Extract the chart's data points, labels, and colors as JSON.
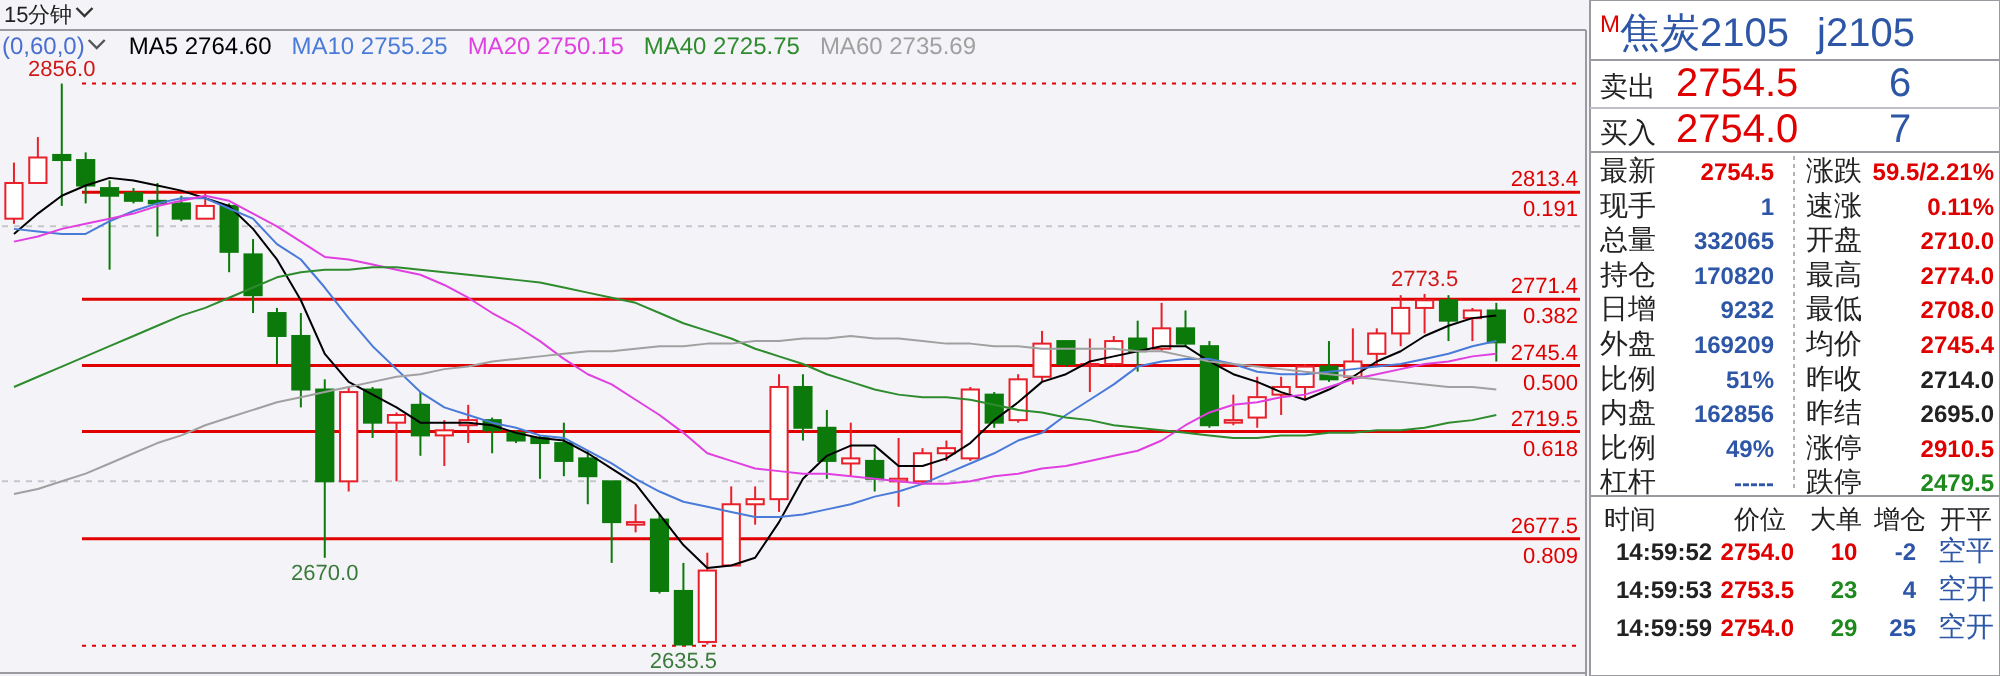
{
  "chart_data": [
    {
      "type": "candlestick",
      "title": "15分钟",
      "subtitle": "(0,60,0)",
      "categories": [
        null,
        null,
        null,
        null,
        null,
        null,
        null,
        null,
        null,
        null,
        null,
        null,
        null,
        null,
        null,
        null,
        null,
        null,
        null,
        null,
        null,
        null,
        null,
        null,
        null,
        null,
        null,
        null,
        null,
        null,
        null,
        null,
        null,
        null,
        null,
        null,
        null,
        null,
        null,
        null,
        null,
        null,
        null,
        null,
        null,
        null,
        null,
        null,
        null,
        null,
        null,
        null,
        null,
        null,
        null,
        null,
        null,
        null,
        null,
        null,
        null,
        null,
        null
      ],
      "ohlc": [
        [
          2803,
          2825,
          2801,
          2817
        ],
        [
          2817,
          2835,
          2817,
          2827
        ],
        [
          2828,
          2856,
          2808,
          2826
        ],
        [
          2826,
          2829,
          2809,
          2816
        ],
        [
          2815,
          2818,
          2783,
          2812
        ],
        [
          2813,
          2815,
          2809,
          2810
        ],
        [
          2810,
          2817,
          2796,
          2809
        ],
        [
          2809,
          2812,
          2802,
          2803
        ],
        [
          2803,
          2813,
          2803,
          2808
        ],
        [
          2808,
          2809,
          2782,
          2790
        ],
        [
          2789,
          2795,
          2766,
          2773
        ],
        [
          2766,
          2768,
          2746,
          2757
        ],
        [
          2757,
          2766,
          2729,
          2736
        ],
        [
          2736,
          2740,
          2670,
          2700
        ],
        [
          2700,
          2737,
          2696,
          2735
        ],
        [
          2736,
          2737,
          2717,
          2723
        ],
        [
          2723,
          2727,
          2700,
          2726
        ],
        [
          2730,
          2735,
          2710,
          2718
        ],
        [
          2718,
          2724,
          2706,
          2720
        ],
        [
          2722,
          2730,
          2715,
          2724
        ],
        [
          2724,
          2725,
          2711,
          2720
        ],
        [
          2719,
          2720,
          2715,
          2716
        ],
        [
          2717,
          2718,
          2701,
          2715
        ],
        [
          2715,
          2723,
          2702,
          2708
        ],
        [
          2709,
          2712,
          2691,
          2702
        ],
        [
          2700,
          2700,
          2668,
          2684
        ],
        [
          2683,
          2691,
          2680,
          2684
        ],
        [
          2685,
          2687,
          2656,
          2657
        ],
        [
          2657,
          2668,
          2635.5,
          2636
        ],
        [
          2637,
          2672,
          2636,
          2665
        ],
        [
          2667,
          2698,
          2667,
          2691
        ],
        [
          2691,
          2698,
          2683,
          2693
        ],
        [
          2693,
          2742,
          2688,
          2737
        ],
        [
          2737,
          2742,
          2716,
          2721
        ],
        [
          2721,
          2728,
          2701,
          2708
        ],
        [
          2707,
          2723,
          2702,
          2709
        ],
        [
          2708,
          2713,
          2696,
          2701
        ],
        [
          2700,
          2717,
          2690,
          2701
        ],
        [
          2700,
          2713,
          2699,
          2711
        ],
        [
          2711,
          2716,
          2708,
          2713
        ],
        [
          2709,
          2737,
          2708,
          2736
        ],
        [
          2734,
          2735,
          2721,
          2723
        ],
        [
          2724,
          2742,
          2723,
          2740
        ],
        [
          2741,
          2759,
          2739,
          2754
        ],
        [
          2755,
          2755,
          2745,
          2746
        ],
        [
          2746,
          2756,
          2735,
          2746
        ],
        [
          2746,
          2757,
          2745,
          2755
        ],
        [
          2756,
          2763,
          2743,
          2751
        ],
        [
          2752,
          2770,
          2751,
          2760
        ],
        [
          2760,
          2767,
          2753,
          2754
        ],
        [
          2753,
          2755,
          2721,
          2722
        ],
        [
          2723,
          2734,
          2722,
          2724
        ],
        [
          2725,
          2741,
          2721,
          2733
        ],
        [
          2734,
          2741,
          2726,
          2737
        ],
        [
          2737,
          2746,
          2732,
          2745
        ],
        [
          2745,
          2755,
          2739,
          2740
        ],
        [
          2741,
          2760,
          2738,
          2747
        ],
        [
          2750,
          2760,
          2746,
          2758
        ],
        [
          2758,
          2773,
          2753,
          2768
        ],
        [
          2768,
          2773.5,
          2758,
          2771
        ],
        [
          2771,
          2773,
          2755,
          2763
        ],
        [
          2764,
          2768,
          2755,
          2767
        ],
        [
          2767,
          2770,
          2747,
          2754.5
        ]
      ],
      "colors": [
        "#e8202a",
        "#e8202a",
        "#0b7a0b",
        "#0b7a0b",
        "#0b7a0b",
        "#0b7a0b",
        "#0b7a0b",
        "#0b7a0b",
        "#e8202a",
        "#0b7a0b",
        "#0b7a0b",
        "#0b7a0b",
        "#0b7a0b",
        "#0b7a0b",
        "#e8202a",
        "#0b7a0b",
        "#e8202a",
        "#0b7a0b",
        "#e8202a",
        "#e8202a",
        "#0b7a0b",
        "#0b7a0b",
        "#0b7a0b",
        "#0b7a0b",
        "#0b7a0b",
        "#0b7a0b",
        "#e8202a",
        "#0b7a0b",
        "#0b7a0b",
        "#e8202a",
        "#e8202a",
        "#e8202a",
        "#e8202a",
        "#0b7a0b",
        "#0b7a0b",
        "#e8202a",
        "#0b7a0b",
        "#e8202a",
        "#e8202a",
        "#e8202a",
        "#e8202a",
        "#0b7a0b",
        "#e8202a",
        "#e8202a",
        "#0b7a0b",
        "#e8202a",
        "#e8202a",
        "#0b7a0b",
        "#e8202a",
        "#0b7a0b",
        "#0b7a0b",
        "#e8202a",
        "#e8202a",
        "#e8202a",
        "#e8202a",
        "#0b7a0b",
        "#e8202a",
        "#e8202a",
        "#e8202a",
        "#e8202a",
        "#0b7a0b",
        "#e8202a",
        "#0b7a0b"
      ],
      "series": [
        {
          "name": "MA5 2764.60",
          "type": "line",
          "color": "#000000",
          "values": [
            2797,
            2805,
            2812,
            2816,
            2819,
            2818,
            2816,
            2814,
            2811,
            2808,
            2799,
            2787,
            2771,
            2750,
            2739,
            2734,
            2729,
            2723,
            2723,
            2723,
            2722,
            2719,
            2717,
            2716,
            2711,
            2705,
            2699,
            2687,
            2675,
            2666,
            2667,
            2670,
            2684,
            2701,
            2710,
            2714,
            2714,
            2706,
            2706,
            2709,
            2715,
            2724,
            2731,
            2739,
            2742,
            2747,
            2749,
            2751,
            2753,
            2753,
            2747,
            2742,
            2739,
            2735,
            2732,
            2736,
            2741,
            2747,
            2751,
            2757,
            2761,
            2764,
            2765
          ]
        },
        {
          "name": "MA10 2755.25",
          "type": "line",
          "color": "#4a7bd8",
          "values": [
            2799,
            2798,
            2797,
            2797,
            2802,
            2806,
            2809,
            2811,
            2811,
            2807,
            2803,
            2793,
            2787,
            2776,
            2764,
            2753,
            2744,
            2735,
            2729,
            2726,
            2723,
            2721,
            2718,
            2717,
            2712,
            2707,
            2701,
            2696,
            2692,
            2690,
            2688,
            2686,
            2686,
            2687,
            2689,
            2691,
            2694,
            2696,
            2699,
            2703,
            2707,
            2711,
            2716,
            2719,
            2726,
            2732,
            2738,
            2745,
            2747,
            2748,
            2748,
            2746,
            2743,
            2742,
            2742,
            2743,
            2744,
            2745,
            2746,
            2748,
            2750,
            2753,
            2755
          ]
        },
        {
          "name": "MA20 2750.15",
          "type": "line",
          "color": "#e040e0",
          "values": [
            2794,
            2796,
            2799,
            2801,
            2803,
            2805,
            2808,
            2810,
            2812,
            2810,
            2805,
            2800,
            2794,
            2788,
            2787,
            2785,
            2783,
            2781,
            2777,
            2772,
            2766,
            2761,
            2755,
            2748,
            2742,
            2738,
            2732,
            2726,
            2719,
            2711,
            2708,
            2705,
            2704,
            2703,
            2703,
            2702,
            2701,
            2700,
            2699,
            2699,
            2700,
            2702,
            2703,
            2705,
            2706,
            2708,
            2710,
            2712,
            2716,
            2722,
            2727,
            2730,
            2731,
            2733,
            2734,
            2737,
            2740,
            2742,
            2744,
            2746,
            2747,
            2749,
            2750
          ]
        },
        {
          "name": "MA40 2725.75",
          "type": "line",
          "color": "#2e8b2e",
          "values": [
            2737,
            2741,
            2745,
            2749,
            2753,
            2757,
            2761,
            2765,
            2768,
            2772,
            2776,
            2780,
            2782,
            2783,
            2783,
            2784,
            2784,
            2783,
            2782,
            2781,
            2780,
            2779,
            2778,
            2776,
            2774,
            2772,
            2770,
            2766,
            2762,
            2759,
            2756,
            2752,
            2749,
            2746,
            2742,
            2739,
            2736,
            2734,
            2733,
            2733,
            2732,
            2730,
            2728,
            2727,
            2725,
            2724,
            2722,
            2721,
            2720,
            2719,
            2718,
            2717,
            2717,
            2718,
            2718,
            2719,
            2719,
            2720,
            2720,
            2721,
            2723,
            2724,
            2726
          ]
        },
        {
          "name": "MA60 2735.69",
          "type": "line",
          "color": "#a0a0a0",
          "values": [
            2695,
            2697,
            2700,
            2703,
            2707,
            2711,
            2715,
            2718,
            2722,
            2725,
            2728,
            2731,
            2733,
            2735,
            2737,
            2739,
            2741,
            2742,
            2744,
            2745,
            2747,
            2748,
            2749,
            2750,
            2751,
            2751,
            2752,
            2753,
            2753,
            2754,
            2754,
            2755,
            2755,
            2756,
            2756,
            2757,
            2756,
            2756,
            2755,
            2754,
            2754,
            2753,
            2753,
            2752,
            2752,
            2752,
            2752,
            2751,
            2751,
            2749,
            2747,
            2746,
            2745,
            2744,
            2743,
            2742,
            2741,
            2740,
            2739,
            2738,
            2737,
            2737,
            2736
          ]
        }
      ],
      "ylim": [
        2626,
        2877
      ],
      "yticks": [
        {
          "value": 2700,
          "label": null
        },
        {
          "value": 2800,
          "label": null
        }
      ],
      "grid": "y",
      "legend": "top",
      "ref_lines": [
        {
          "axis": "y",
          "value": 2856,
          "label": null,
          "color": "#e00000",
          "line_style": "dotted"
        },
        {
          "axis": "y",
          "value": 2813.4,
          "label": "2813.4",
          "color": "#e00000"
        },
        {
          "axis": "y",
          "value": 2771.4,
          "label": "2771.4",
          "color": "#e00000"
        },
        {
          "axis": "y",
          "value": 2745.4,
          "label": "2745.4",
          "color": "#e00000"
        },
        {
          "axis": "y",
          "value": 2719.5,
          "label": "2719.5",
          "color": "#e00000"
        },
        {
          "axis": "y",
          "value": 2677.5,
          "label": "2677.5",
          "color": "#e00000"
        },
        {
          "axis": "y",
          "value": 2635.5,
          "label": null,
          "color": "#e00000",
          "line_style": "dotted"
        }
      ],
      "annotations": [
        {
          "text": "2856.0",
          "y": 2856
        },
        {
          "text": "2670.0",
          "y": 2670
        },
        {
          "text": "2635.5",
          "y": 2635.5
        },
        {
          "text": "2773.5",
          "y": 2773.5
        },
        {
          "text": "0.191",
          "y": 2813.4
        },
        {
          "text": "0.382",
          "y": 2771.4
        },
        {
          "text": "0.500",
          "y": 2745.4
        },
        {
          "text": "0.618",
          "y": 2719.5
        },
        {
          "text": "0.809",
          "y": 2677.5
        }
      ]
    },
    {
      "type": "other",
      "title": "$^{M}$焦炭2105",
      "subtitle": "j2105",
      "annotations": [
        "卖出",
        "2754.5",
        "6",
        "买入",
        "2754.0",
        "7",
        "最新",
        "2754.5",
        "涨跌",
        "59.5/2.21%",
        "现手",
        "1",
        "速涨",
        "0.11%",
        "总量",
        "332065",
        "开盘",
        "2710.0",
        "持仓",
        "170820",
        "最高",
        "2774.0",
        "日增",
        "9232",
        "最低",
        "2708.0",
        "外盘",
        "169209",
        "均价",
        "2745.4",
        "比例",
        "51%",
        "昨收",
        "2714.0",
        "内盘",
        "162856",
        "昨结",
        "2695.0",
        "比例",
        "49%",
        "涨停",
        "2910.5",
        "杠杆",
        "-----",
        "跌停",
        "2479.5",
        "时间",
        "价位",
        "大单",
        "增仓",
        "开平",
        "14:59:52",
        "2754.0",
        "10",
        "-2",
        "空平",
        "14:59:53",
        "2753.5",
        "23",
        "4",
        "空开",
        "14:59:59",
        "2754.0",
        "29",
        "25",
        "空开"
      ]
    }
  ]
}
